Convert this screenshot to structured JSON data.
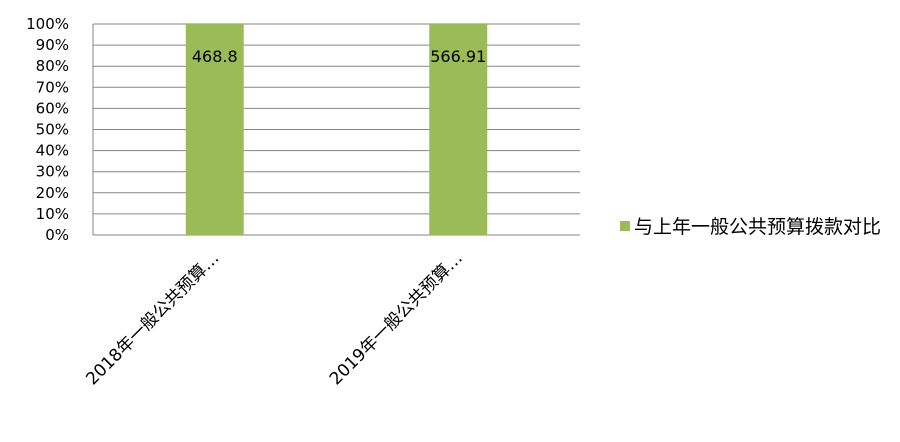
{
  "chart_data": {
    "type": "bar",
    "categories": [
      "2018年一般公共预算…",
      "2019年一般公共预算…"
    ],
    "series": [
      {
        "name": "与上年一般公共预算拨款对比",
        "values": [
          468.8,
          566.91
        ],
        "data_labels": [
          "468.8",
          "566.91"
        ]
      }
    ],
    "y_ticks": [
      "0%",
      "10%",
      "20%",
      "30%",
      "40%",
      "50%",
      "60%",
      "70%",
      "80%",
      "90%",
      "100%"
    ],
    "ylim": [
      0,
      1
    ],
    "grid": true,
    "legend_position": "right",
    "colors": {
      "bar": "#9bbb59",
      "grid": "#868686",
      "text": "#000000"
    }
  }
}
